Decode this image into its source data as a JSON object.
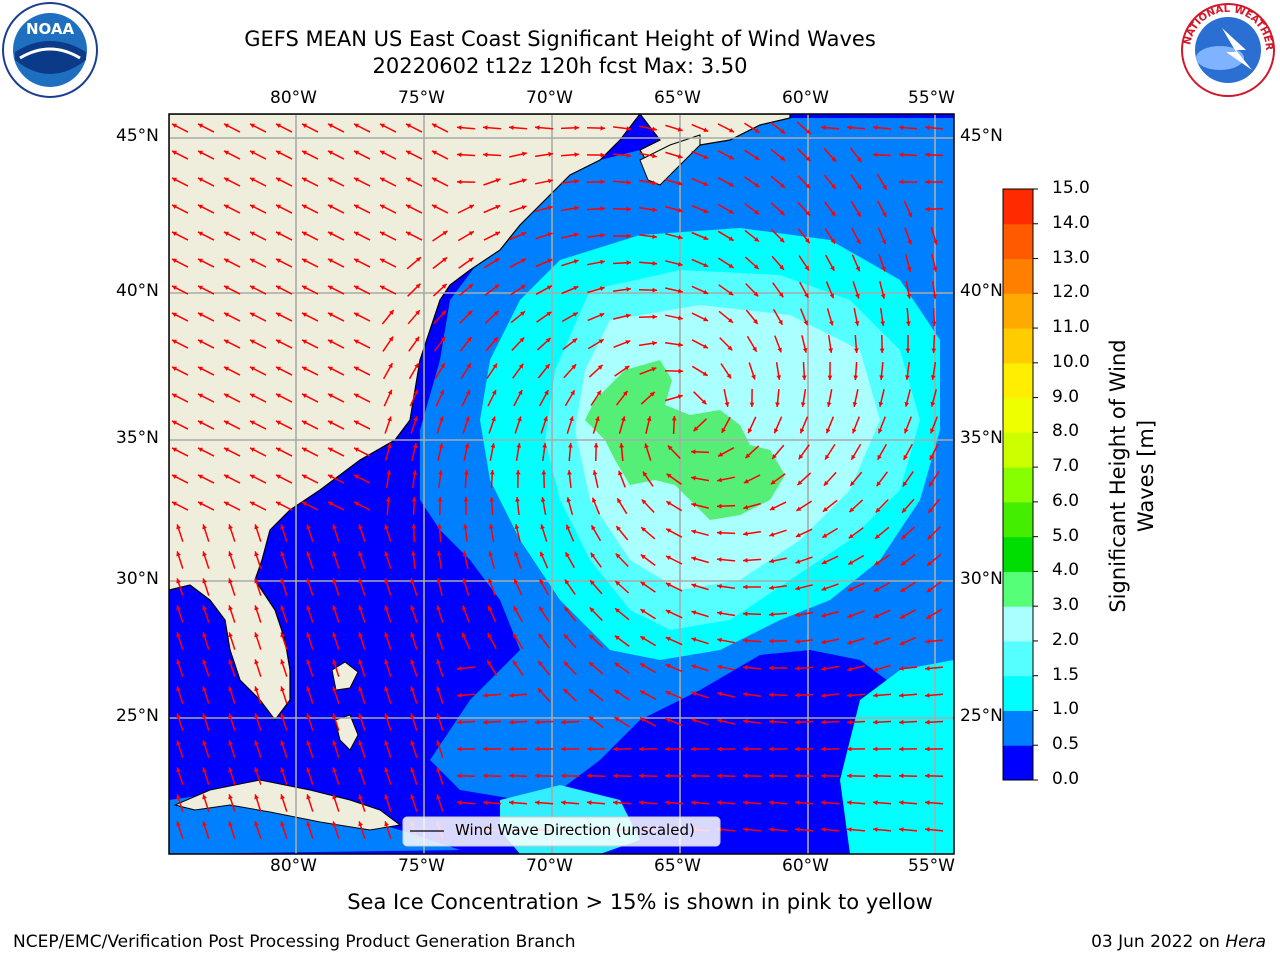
{
  "header": {
    "title_line1": "GEFS MEAN US East Coast Significant Height of Wind Waves",
    "title_line2": "20220602 t12z 120h fcst   Max: 3.50"
  },
  "logos": {
    "left": {
      "text": "NOAA"
    },
    "right": {
      "text": "NATIONAL WEATHER SERVICE"
    }
  },
  "axes": {
    "lon_labels": [
      "80°W",
      "75°W",
      "70°W",
      "65°W",
      "60°W",
      "55°W"
    ],
    "lat_labels": [
      "45°N",
      "40°N",
      "35°N",
      "30°N",
      "25°N"
    ]
  },
  "legend": {
    "label": "Wind Wave Direction (unscaled)"
  },
  "colorbar": {
    "title_line1": "Significant Height of Wind",
    "title_line2": "Waves [m]",
    "ticks": [
      "15.0",
      "14.0",
      "13.0",
      "12.0",
      "11.0",
      "10.0",
      "9.0",
      "8.0",
      "7.0",
      "6.0",
      "5.0",
      "4.0",
      "3.0",
      "2.0",
      "1.5",
      "1.0",
      "0.5",
      "0.0"
    ],
    "colors": [
      "#ff0000",
      "#ff2a00",
      "#ff5a00",
      "#ff8000",
      "#ffaa00",
      "#ffcc00",
      "#ffee00",
      "#eeff00",
      "#ccff00",
      "#88ff00",
      "#44ee00",
      "#00dd00",
      "#55ff77",
      "#aaffff",
      "#55ffff",
      "#00ffff",
      "#0080ff",
      "#0000ff"
    ]
  },
  "caption": "Sea Ice Concentration > 15% is shown in pink to yellow",
  "footer": {
    "left": "NCEP/EMC/Verification Post Processing Product Generation Branch",
    "right_date": "03 Jun 2022 on ",
    "right_machine": "Hera"
  }
}
